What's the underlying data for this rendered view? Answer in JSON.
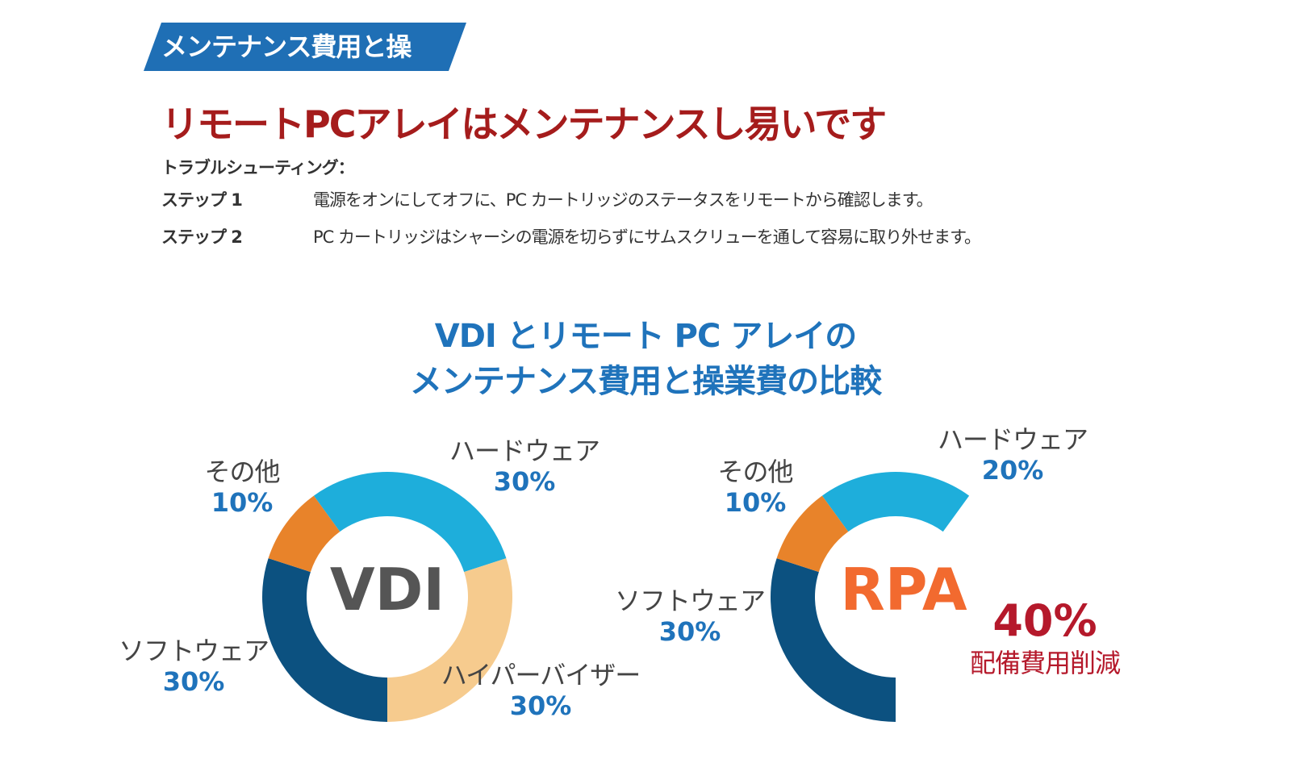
{
  "banner": {
    "text": "メンテナンス費用と操"
  },
  "headline": "リモートPCアレイはメンテナンスし易いです",
  "troubleshooting": {
    "label": "トラブルシューティング：",
    "steps": [
      {
        "label": "ステップ 1",
        "text": "電源をオンにしてオフに、PC カートリッジのステータスをリモートから確認します。"
      },
      {
        "label": "ステップ 2",
        "text": "PC カートリッジはシャーシの電源を切らずにサムスクリューを通して容易に取り外せます。"
      }
    ]
  },
  "chart_title": {
    "line1": "VDI とリモート PC アレイの",
    "line2": "メンテナンス費用と操業費の比較"
  },
  "colors": {
    "hardware": "#1eaedb",
    "hypervisor": "#f6cb8e",
    "software": "#0c5180",
    "other": "#e8832a",
    "accent_blue": "#1f73bb",
    "accent_red": "#b5192b"
  },
  "chart_data": [
    {
      "type": "pie",
      "center_label": "VDI",
      "center_color": "#555555",
      "slices": [
        {
          "name": "ハードウェア",
          "value": 30,
          "label": "30%"
        },
        {
          "name": "ハイパーバイザー",
          "value": 30,
          "label": "30%"
        },
        {
          "name": "ソフトウェア",
          "value": 30,
          "label": "30%"
        },
        {
          "name": "その他",
          "value": 10,
          "label": "10%"
        }
      ]
    },
    {
      "type": "pie",
      "center_label": "RPA",
      "center_color": "#f26a2f",
      "slices": [
        {
          "name": "ハードウェア",
          "value": 20,
          "label": "20%"
        },
        {
          "name": "ソフトウェア",
          "value": 30,
          "label": "30%"
        },
        {
          "name": "その他",
          "value": 10,
          "label": "10%"
        }
      ],
      "savings": {
        "value": "40%",
        "text": "配備費用削減"
      }
    }
  ]
}
